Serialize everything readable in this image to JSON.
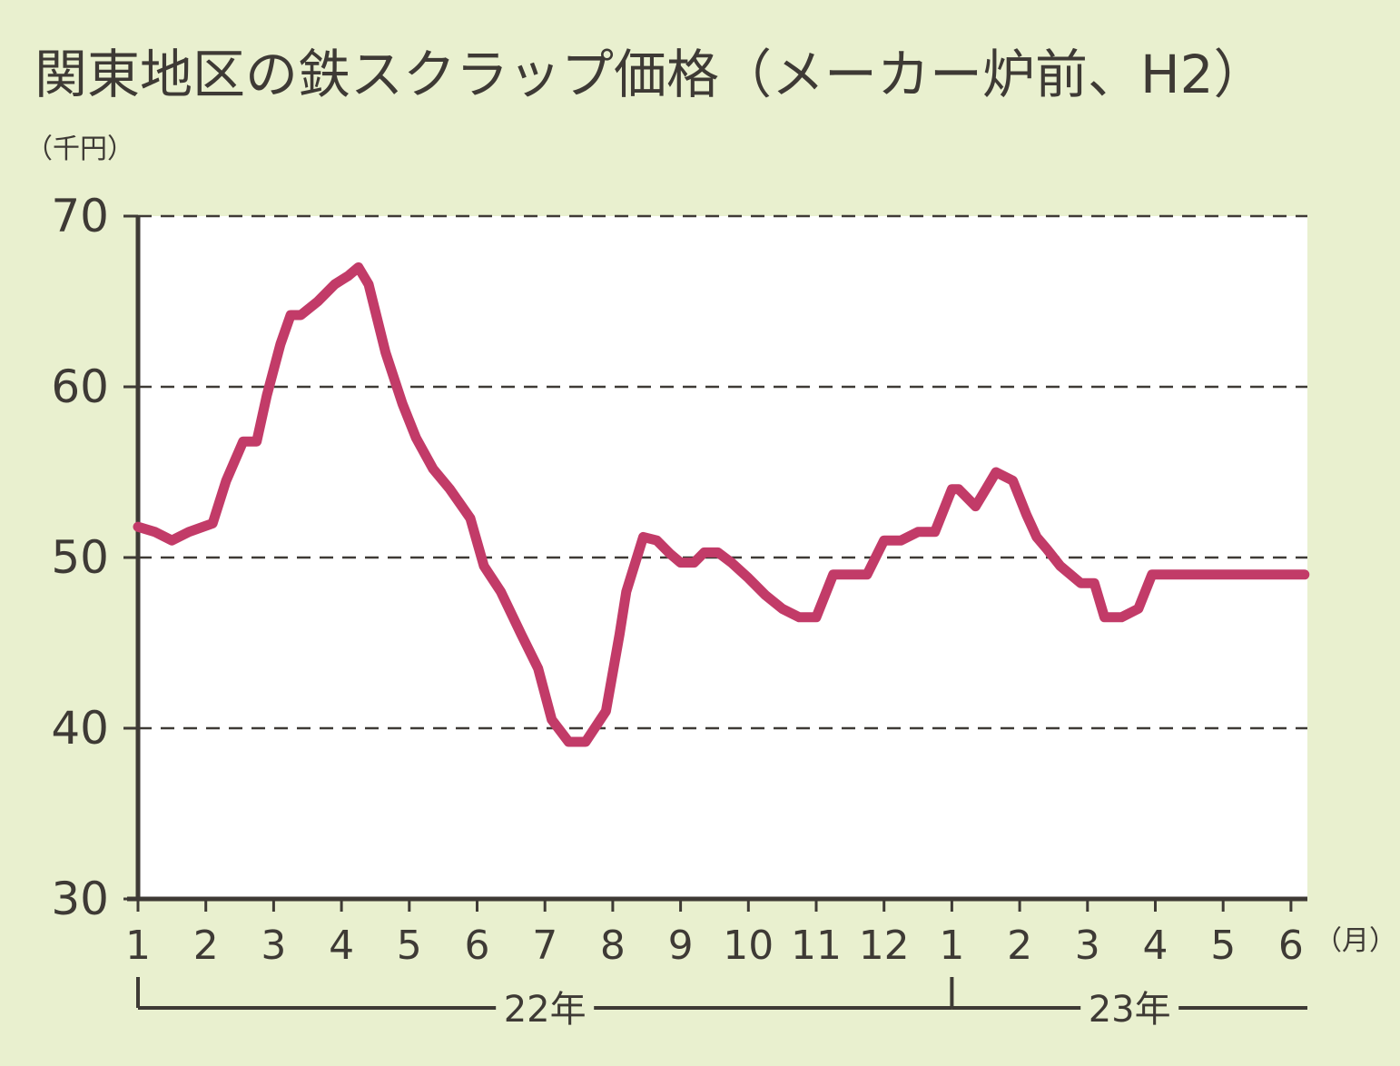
{
  "chart_data": {
    "type": "line",
    "title": "関東地区の鉄スクラップ価格（メーカー炉前、H2）",
    "ylabel": "（千円）",
    "xunit": "（月）",
    "ylim": [
      30,
      70
    ],
    "yticks": [
      "30",
      "40",
      "50",
      "60",
      "70"
    ],
    "grid": "horizontal dashed",
    "line_color": "#c23b68",
    "month_ticks": [
      "1",
      "2",
      "3",
      "4",
      "5",
      "6",
      "7",
      "8",
      "9",
      "10",
      "11",
      "12",
      "1",
      "2",
      "3",
      "4",
      "5",
      "6"
    ],
    "year_groups": [
      {
        "label": "22年",
        "from_month_index": 0,
        "to_month_index": 12
      },
      {
        "label": "23年",
        "from_month_index": 12,
        "to_month_index": 17.3
      }
    ],
    "series": [
      {
        "x_month_index": [
          0,
          0.25,
          0.5,
          0.75,
          1.1,
          1.3,
          1.55,
          1.75,
          1.9,
          2.1,
          2.25,
          2.4,
          2.65,
          2.9,
          3.1,
          3.25,
          3.4,
          3.65,
          3.9,
          4.1,
          4.35,
          4.6,
          4.9,
          5.1,
          5.35,
          5.65,
          5.9,
          6.1,
          6.35,
          6.6,
          6.9,
          7.1,
          7.2,
          7.45,
          7.65,
          7.85,
          8.0,
          8.2,
          8.35,
          8.55,
          8.75,
          9.0,
          9.25,
          9.5,
          9.75,
          10.0,
          10.25,
          10.5,
          10.75,
          11.0,
          11.25,
          11.5,
          11.75,
          12.0,
          12.1,
          12.35,
          12.5,
          12.65,
          12.9,
          13.1,
          13.25,
          13.4,
          13.6,
          13.9,
          14.1,
          14.25,
          14.5,
          14.75,
          14.95,
          15.15,
          15.4,
          15.65,
          15.9,
          16.05,
          16.3,
          16.5,
          16.7,
          16.85,
          17.0,
          17.2
        ],
        "y_thousand_yen": [
          51.8,
          51.5,
          51.0,
          51.5,
          52.0,
          54.5,
          56.8,
          56.8,
          59.5,
          62.5,
          64.2,
          64.2,
          65.0,
          66.0,
          66.5,
          67.0,
          66.0,
          62.0,
          59.0,
          57.0,
          55.2,
          54.0,
          52.3,
          49.5,
          48.0,
          45.5,
          43.5,
          40.5,
          39.2,
          39.2,
          41.0,
          45.5,
          48.0,
          51.2,
          51.0,
          50.2,
          49.7,
          49.7,
          50.3,
          50.3,
          49.7,
          48.8,
          47.8,
          47.0,
          46.5,
          46.5,
          49.0,
          49.0,
          49.0,
          51.0,
          51.0,
          51.5,
          51.5,
          54.0,
          54.0,
          53.0,
          54.0,
          55.0,
          54.5,
          52.5,
          51.2,
          50.5,
          49.5,
          48.5,
          48.5,
          46.5,
          46.5,
          47.0,
          49.0,
          49.0,
          49.0,
          49.0,
          49.0,
          49.0,
          49.0,
          49.0,
          49.0,
          49.0,
          49.0,
          49.0
        ]
      }
    ]
  }
}
